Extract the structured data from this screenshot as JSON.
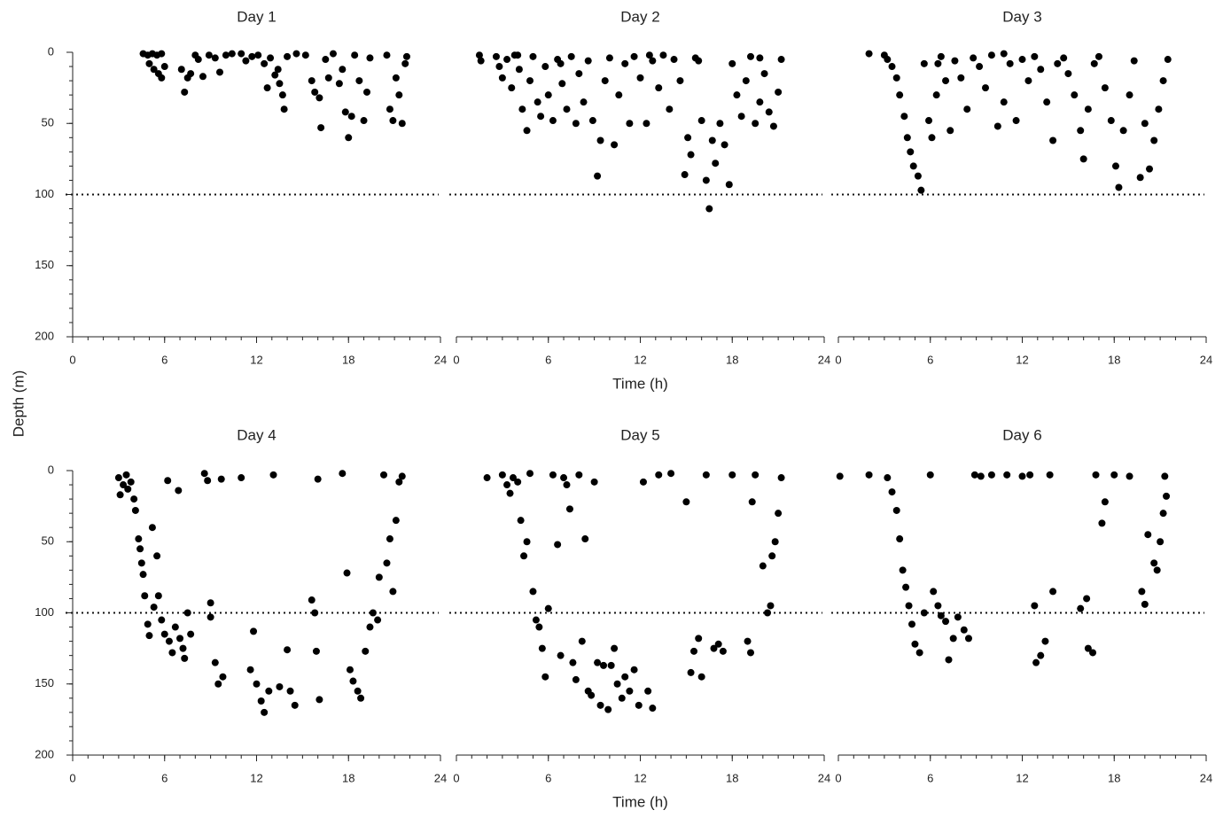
{
  "chart_data": [
    {
      "type": "scatter",
      "title": "Day 1",
      "ylabel": "Depth (m)",
      "xlim": [
        0,
        24
      ],
      "xticks": [
        0,
        6,
        12,
        18,
        24
      ],
      "x_minor_step": 1,
      "ylim": [
        200,
        0
      ],
      "yticks": [
        0,
        50,
        100,
        150,
        200
      ],
      "y_minor_step": 10,
      "reference_line": 100,
      "color": "#000000",
      "x": [
        4.6,
        4.9,
        5.2,
        5.5,
        5.8,
        5.0,
        5.3,
        5.6,
        5.8,
        6.0,
        7.1,
        7.3,
        7.5,
        7.7,
        8.0,
        8.2,
        8.5,
        8.9,
        9.3,
        9.6,
        10.0,
        10.4,
        11.0,
        11.3,
        11.7,
        12.1,
        12.5,
        12.9,
        13.2,
        13.5,
        13.7,
        13.8,
        12.7,
        13.4,
        14.0,
        14.6,
        15.2,
        15.6,
        15.8,
        16.1,
        16.2,
        16.7,
        17.0,
        17.4,
        17.8,
        18.0,
        18.2,
        18.4,
        18.7,
        19.0,
        19.2,
        19.4,
        20.5,
        20.7,
        20.9,
        21.1,
        21.3,
        21.5,
        21.7,
        21.8,
        17.6,
        16.5
      ],
      "y": [
        1,
        2,
        1,
        2,
        1,
        8,
        12,
        15,
        18,
        10,
        12,
        28,
        18,
        15,
        2,
        5,
        17,
        2,
        4,
        14,
        2,
        1,
        1,
        6,
        3,
        2,
        8,
        4,
        16,
        22,
        30,
        40,
        25,
        12,
        3,
        1,
        2,
        20,
        28,
        32,
        53,
        18,
        1,
        22,
        42,
        60,
        45,
        2,
        20,
        48,
        28,
        4,
        2,
        40,
        48,
        18,
        30,
        50,
        8,
        3,
        12,
        5
      ]
    },
    {
      "type": "scatter",
      "title": "Day 2",
      "xlabel": "Time (h)",
      "xlim": [
        0,
        24
      ],
      "xticks": [
        0,
        6,
        12,
        18,
        24
      ],
      "x_minor_step": 1,
      "ylim": [
        200,
        0
      ],
      "reference_line": 100,
      "color": "#000000",
      "x": [
        1.5,
        1.6,
        2.6,
        2.8,
        3.0,
        3.3,
        3.6,
        3.8,
        4.1,
        4.3,
        4.6,
        4.8,
        5.0,
        5.3,
        5.5,
        5.8,
        6.0,
        6.3,
        6.6,
        6.9,
        7.2,
        7.5,
        7.8,
        8.0,
        8.3,
        8.6,
        8.9,
        9.2,
        9.4,
        9.7,
        10.0,
        10.3,
        10.6,
        11.0,
        11.3,
        11.6,
        12.0,
        12.4,
        12.8,
        13.2,
        13.5,
        13.9,
        14.2,
        14.6,
        14.9,
        15.1,
        15.3,
        15.6,
        16.0,
        16.3,
        16.5,
        16.7,
        16.9,
        17.2,
        17.5,
        17.8,
        18.0,
        18.3,
        18.6,
        18.9,
        19.2,
        19.5,
        19.8,
        20.1,
        20.4,
        20.7,
        21.0,
        21.2,
        4.0,
        6.8,
        12.6,
        15.8,
        19.8
      ],
      "y": [
        2,
        6,
        3,
        10,
        18,
        5,
        25,
        2,
        12,
        40,
        55,
        20,
        3,
        35,
        45,
        10,
        30,
        48,
        5,
        22,
        40,
        3,
        50,
        15,
        35,
        6,
        48,
        87,
        62,
        20,
        4,
        65,
        30,
        8,
        50,
        3,
        18,
        50,
        6,
        25,
        2,
        40,
        5,
        20,
        86,
        60,
        72,
        4,
        48,
        90,
        110,
        62,
        78,
        50,
        65,
        93,
        8,
        30,
        45,
        20,
        3,
        50,
        35,
        15,
        42,
        52,
        28,
        5,
        2,
        8,
        2,
        6,
        4
      ]
    },
    {
      "type": "scatter",
      "title": "Day 3",
      "xlim": [
        0,
        24
      ],
      "xticks": [
        0,
        6,
        12,
        18,
        24
      ],
      "x_minor_step": 1,
      "ylim": [
        200,
        0
      ],
      "reference_line": 100,
      "color": "#000000",
      "x": [
        2.0,
        3.2,
        3.5,
        3.8,
        4.0,
        4.3,
        4.5,
        4.7,
        4.9,
        5.2,
        5.4,
        5.6,
        5.9,
        6.1,
        6.4,
        6.7,
        7.0,
        7.3,
        7.6,
        8.0,
        8.4,
        8.8,
        9.2,
        9.6,
        10.0,
        10.4,
        10.8,
        11.2,
        11.6,
        12.0,
        12.4,
        12.8,
        13.2,
        13.6,
        14.0,
        14.3,
        14.7,
        15.0,
        15.4,
        15.8,
        16.0,
        16.3,
        16.7,
        17.0,
        17.4,
        17.8,
        18.1,
        18.3,
        18.6,
        19.0,
        19.3,
        19.7,
        20.0,
        20.3,
        20.6,
        20.9,
        21.2,
        21.5,
        3.0,
        10.8,
        6.5
      ],
      "y": [
        1,
        5,
        10,
        18,
        30,
        45,
        60,
        70,
        80,
        87,
        97,
        8,
        48,
        60,
        30,
        3,
        20,
        55,
        6,
        18,
        40,
        4,
        10,
        25,
        2,
        52,
        35,
        8,
        48,
        5,
        20,
        3,
        12,
        35,
        62,
        8,
        4,
        15,
        30,
        55,
        75,
        40,
        8,
        3,
        25,
        48,
        80,
        95,
        55,
        30,
        6,
        88,
        50,
        82,
        62,
        40,
        20,
        5,
        2,
        1,
        8
      ]
    },
    {
      "type": "scatter",
      "title": "Day 4",
      "xlim": [
        0,
        24
      ],
      "xticks": [
        0,
        6,
        12,
        18,
        24
      ],
      "x_minor_step": 1,
      "ylim": [
        200,
        0
      ],
      "yticks": [
        0,
        50,
        100,
        150,
        200
      ],
      "y_minor_step": 10,
      "reference_line": 100,
      "color": "#000000",
      "x": [
        3.0,
        3.1,
        3.3,
        3.5,
        3.6,
        3.8,
        4.0,
        4.1,
        4.3,
        4.4,
        4.5,
        4.6,
        4.7,
        4.9,
        5.0,
        5.2,
        5.3,
        5.5,
        5.6,
        5.8,
        6.0,
        6.2,
        6.3,
        6.5,
        6.7,
        6.9,
        7.0,
        7.2,
        7.3,
        7.5,
        7.7,
        8.6,
        8.8,
        9.0,
        9.0,
        9.3,
        9.5,
        9.7,
        9.8,
        11.0,
        11.6,
        11.8,
        12.0,
        12.3,
        12.5,
        12.8,
        13.1,
        13.5,
        14.0,
        14.2,
        14.5,
        15.6,
        15.8,
        15.9,
        16.0,
        16.1,
        17.6,
        17.9,
        18.1,
        18.3,
        18.6,
        18.8,
        19.1,
        19.4,
        19.6,
        19.9,
        20.0,
        20.3,
        20.5,
        20.7,
        20.9,
        21.1,
        21.3,
        21.5
      ],
      "y": [
        5,
        17,
        10,
        3,
        13,
        8,
        20,
        28,
        48,
        55,
        65,
        73,
        88,
        108,
        116,
        40,
        96,
        60,
        88,
        105,
        115,
        7,
        120,
        128,
        110,
        14,
        118,
        125,
        132,
        100,
        115,
        2,
        7,
        93,
        103,
        135,
        150,
        6,
        145,
        5,
        140,
        113,
        150,
        162,
        170,
        155,
        3,
        152,
        126,
        155,
        165,
        91,
        100,
        127,
        6,
        161,
        2,
        72,
        140,
        148,
        155,
        160,
        127,
        110,
        100,
        105,
        75,
        3,
        65,
        48,
        85,
        35,
        8,
        4
      ]
    },
    {
      "type": "scatter",
      "title": "Day 5",
      "xlabel": "Time (h)",
      "xlim": [
        0,
        24
      ],
      "xticks": [
        0,
        6,
        12,
        18,
        24
      ],
      "x_minor_step": 1,
      "ylim": [
        200,
        0
      ],
      "reference_line": 100,
      "color": "#000000",
      "x": [
        2.0,
        3.0,
        3.3,
        3.5,
        3.7,
        4.0,
        4.2,
        4.4,
        4.6,
        4.8,
        5.0,
        5.2,
        5.4,
        5.6,
        5.8,
        6.0,
        6.3,
        6.6,
        6.8,
        7.0,
        7.2,
        7.4,
        7.6,
        7.8,
        8.0,
        8.2,
        8.4,
        8.6,
        8.8,
        9.0,
        9.2,
        9.4,
        9.6,
        9.9,
        10.1,
        10.3,
        10.5,
        10.8,
        11.0,
        11.3,
        11.6,
        11.9,
        12.2,
        12.5,
        12.8,
        13.2,
        14.0,
        15.0,
        15.3,
        15.5,
        15.8,
        16.0,
        16.3,
        16.8,
        17.1,
        17.4,
        18.0,
        19.0,
        19.2,
        19.3,
        19.5,
        20.0,
        20.3,
        20.5,
        20.6,
        20.8,
        21.0,
        21.2
      ],
      "y": [
        5,
        3,
        10,
        16,
        5,
        8,
        35,
        60,
        50,
        2,
        85,
        105,
        110,
        125,
        145,
        97,
        3,
        52,
        130,
        5,
        10,
        27,
        135,
        147,
        3,
        120,
        48,
        155,
        158,
        8,
        135,
        165,
        137,
        168,
        137,
        125,
        150,
        160,
        145,
        155,
        140,
        165,
        8,
        155,
        167,
        3,
        2,
        22,
        142,
        127,
        118,
        145,
        3,
        125,
        122,
        127,
        3,
        120,
        128,
        22,
        3,
        67,
        100,
        95,
        60,
        50,
        30,
        5
      ]
    },
    {
      "type": "scatter",
      "title": "Day 6",
      "xlim": [
        0,
        24
      ],
      "xticks": [
        0,
        6,
        12,
        18,
        24
      ],
      "x_minor_step": 1,
      "ylim": [
        200,
        0
      ],
      "reference_line": 100,
      "color": "#000000",
      "x": [
        0.1,
        2.0,
        3.2,
        3.5,
        3.8,
        4.0,
        4.2,
        4.4,
        4.6,
        4.8,
        5.0,
        5.3,
        5.6,
        6.0,
        6.2,
        6.5,
        6.7,
        7.0,
        7.2,
        7.5,
        7.8,
        8.2,
        8.5,
        8.9,
        9.3,
        10.0,
        11.0,
        12.0,
        12.5,
        12.8,
        12.9,
        13.2,
        13.5,
        13.8,
        14.0,
        15.8,
        16.2,
        16.3,
        16.6,
        16.8,
        17.2,
        17.4,
        18.0,
        19.0,
        19.8,
        20.0,
        20.2,
        20.6,
        20.8,
        21.0,
        21.2,
        21.4,
        21.3
      ],
      "y": [
        4,
        3,
        5,
        15,
        28,
        48,
        70,
        82,
        95,
        108,
        122,
        128,
        100,
        3,
        85,
        95,
        102,
        106,
        133,
        118,
        103,
        112,
        118,
        3,
        4,
        3,
        3,
        4,
        3,
        95,
        135,
        130,
        120,
        3,
        85,
        97,
        90,
        125,
        128,
        3,
        37,
        22,
        3,
        4,
        85,
        94,
        45,
        65,
        70,
        50,
        30,
        18,
        4
      ]
    }
  ]
}
